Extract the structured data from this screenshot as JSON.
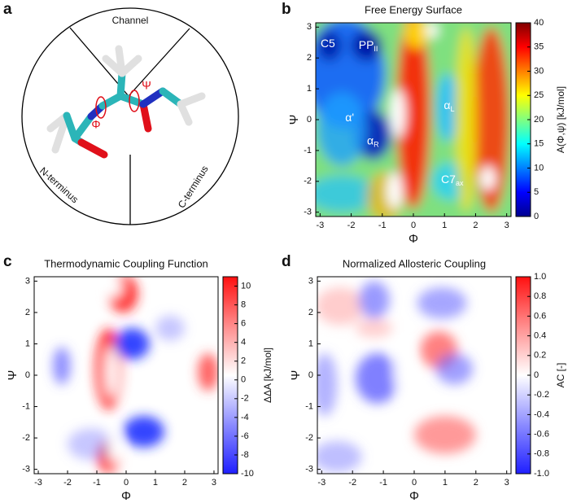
{
  "panel_labels": [
    "a",
    "b",
    "c",
    "d"
  ],
  "diagram": {
    "sectors": [
      "Channel",
      "N-terminus",
      "C-terminus"
    ],
    "angles": [
      "Φ",
      "Ψ"
    ]
  },
  "chart_data": [
    {
      "type": "contour",
      "title": "Free Energy Surface",
      "xlabel": "Φ",
      "ylabel": "Ψ",
      "xlim": [
        -3.14,
        3.14
      ],
      "ylim": [
        -3.14,
        3.14
      ],
      "xticks": [
        -3,
        -2,
        -1,
        0,
        1,
        2,
        3
      ],
      "yticks": [
        -3,
        -2,
        -1,
        0,
        1,
        2,
        3
      ],
      "colorbar": {
        "label": "A(Φ,ψ) [kJ/mol]",
        "lim": [
          0,
          40
        ],
        "ticks": [
          0,
          5,
          10,
          15,
          20,
          25,
          30,
          35,
          40
        ],
        "colors": [
          "#00008f",
          "#0000ff",
          "#0080ff",
          "#00ffff",
          "#80ff80",
          "#ffff00",
          "#ff8000",
          "#ff0000",
          "#800000"
        ]
      },
      "annotations": [
        {
          "text": "C5"
        },
        {
          "text": "PP",
          "sub": "II"
        },
        {
          "text": "α'"
        },
        {
          "text": "α",
          "sub": "R"
        },
        {
          "text": "α",
          "sub": "L"
        },
        {
          "text": "C7",
          "sub": "ax"
        }
      ]
    },
    {
      "type": "contour",
      "title": "Thermodynamic Coupling Function",
      "xlabel": "Φ",
      "ylabel": "Ψ",
      "xlim": [
        -3.14,
        3.14
      ],
      "ylim": [
        -3.14,
        3.14
      ],
      "xticks": [
        -3,
        -2,
        -1,
        0,
        1,
        2,
        3
      ],
      "yticks": [
        -3,
        -2,
        -1,
        0,
        1,
        2,
        3
      ],
      "colorbar": {
        "label": "ΔΔA [kJ/mol]",
        "lim": [
          -10,
          11
        ],
        "ticks": [
          -10,
          -8,
          -6,
          -4,
          -2,
          0,
          2,
          4,
          6,
          8,
          10
        ],
        "colors": [
          "#1f1fff",
          "#8c8cff",
          "#ffffff",
          "#ff8c8c",
          "#ff1010"
        ]
      },
      "annotations": []
    },
    {
      "type": "contour",
      "title": "Normalized Allosteric Coupling",
      "xlabel": "Φ",
      "ylabel": "Ψ",
      "xlim": [
        -3.14,
        3.14
      ],
      "ylim": [
        -3.14,
        3.14
      ],
      "xticks": [
        -3,
        -2,
        -1,
        0,
        1,
        2,
        3
      ],
      "yticks": [
        -3,
        -2,
        -1,
        0,
        1,
        2,
        3
      ],
      "colorbar": {
        "label": "AC [-]",
        "lim": [
          -1,
          1
        ],
        "ticks": [
          {
            "value": -1,
            "label": "-1.0"
          },
          -0.8,
          -0.6,
          -0.4,
          -0.2,
          0,
          0.2,
          0.4,
          0.6,
          0.8,
          {
            "value": 1,
            "label": "1.0"
          }
        ],
        "colors": [
          "#1f1fff",
          "#8c8cff",
          "#ffffff",
          "#ff8c8c",
          "#ff1010"
        ]
      },
      "annotations": []
    }
  ]
}
